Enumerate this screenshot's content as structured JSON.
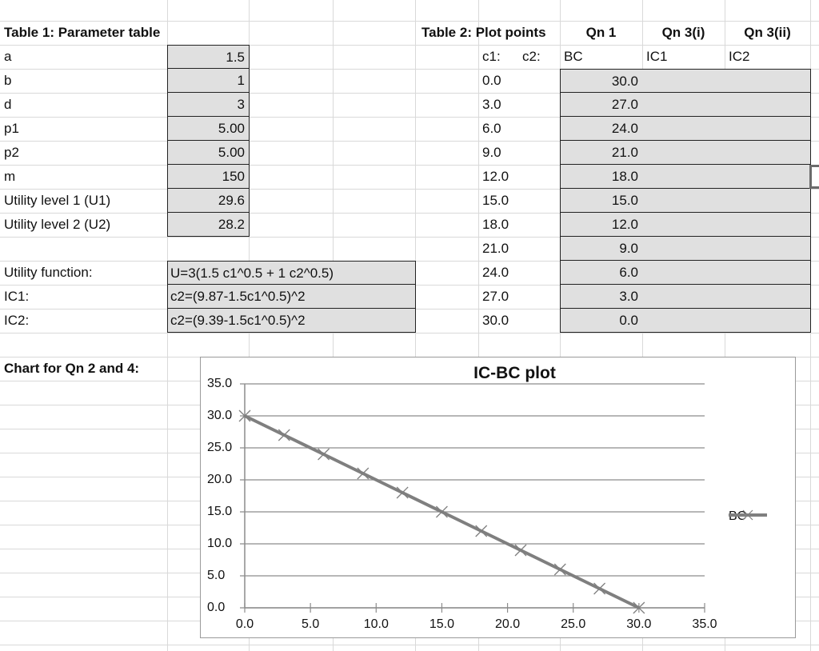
{
  "table1": {
    "title": "Table 1: Parameter table",
    "rows": [
      {
        "label": "a",
        "value": "1.5"
      },
      {
        "label": "b",
        "value": "1"
      },
      {
        "label": "d",
        "value": "3"
      },
      {
        "label": "p1",
        "value": "5.00"
      },
      {
        "label": "p2",
        "value": "5.00"
      },
      {
        "label": "m",
        "value": "150"
      },
      {
        "label": "Utility level 1 (U1)",
        "value": "29.6"
      },
      {
        "label": "Utility level 2 (U2)",
        "value": "28.2"
      }
    ]
  },
  "formulas": [
    {
      "label": "Utility function:",
      "value": "U=3(1.5 c1^0.5 + 1 c2^0.5)"
    },
    {
      "label": "IC1:",
      "value": "c2=(9.87-1.5c1^0.5)^2"
    },
    {
      "label": "IC2:",
      "value": "c2=(9.39-1.5c1^0.5)^2"
    }
  ],
  "chart_section_label": "Chart for Qn 2 and 4:",
  "table2": {
    "title": "Table 2: Plot points",
    "col_headers": [
      "Qn 1",
      "Qn 3(i)",
      "Qn 3(ii)"
    ],
    "sub_headers": {
      "c1": "c1:",
      "c2": "c2:",
      "bc": "BC",
      "ic1": "IC1",
      "ic2": "IC2"
    },
    "rows": [
      {
        "c1": "0.0",
        "bc": "30.0",
        "ic1": "",
        "ic2": ""
      },
      {
        "c1": "3.0",
        "bc": "27.0",
        "ic1": "",
        "ic2": ""
      },
      {
        "c1": "6.0",
        "bc": "24.0",
        "ic1": "",
        "ic2": ""
      },
      {
        "c1": "9.0",
        "bc": "21.0",
        "ic1": "",
        "ic2": ""
      },
      {
        "c1": "12.0",
        "bc": "18.0",
        "ic1": "",
        "ic2": ""
      },
      {
        "c1": "15.0",
        "bc": "15.0",
        "ic1": "",
        "ic2": ""
      },
      {
        "c1": "18.0",
        "bc": "12.0",
        "ic1": "",
        "ic2": ""
      },
      {
        "c1": "21.0",
        "bc": "9.0",
        "ic1": "",
        "ic2": ""
      },
      {
        "c1": "24.0",
        "bc": "6.0",
        "ic1": "",
        "ic2": ""
      },
      {
        "c1": "27.0",
        "bc": "3.0",
        "ic1": "",
        "ic2": ""
      },
      {
        "c1": "30.0",
        "bc": "0.0",
        "ic1": "",
        "ic2": ""
      }
    ]
  },
  "colors": {
    "shaded_cell": "#e0e0e0",
    "gridline": "#d9d9d9",
    "series_line": "#7f7f7f",
    "chart_gridline": "#8c8c8c"
  },
  "chart_data": {
    "type": "scatter",
    "title": "IC-BC plot",
    "xlabel": "",
    "ylabel": "",
    "xlim": [
      0,
      35
    ],
    "ylim": [
      0,
      35
    ],
    "x_ticks": [
      "0.0",
      "5.0",
      "10.0",
      "15.0",
      "20.0",
      "25.0",
      "30.0",
      "35.0"
    ],
    "y_ticks": [
      "35.0",
      "30.0",
      "25.0",
      "20.0",
      "15.0",
      "10.0",
      "5.0",
      "0.0"
    ],
    "grid": "horizontal",
    "legend_position": "right",
    "series": [
      {
        "name": "BC",
        "marker": "x",
        "x": [
          0,
          3,
          6,
          9,
          12,
          15,
          18,
          21,
          24,
          27,
          30
        ],
        "y": [
          30,
          27,
          24,
          21,
          18,
          15,
          12,
          9,
          6,
          3,
          0
        ]
      }
    ]
  }
}
